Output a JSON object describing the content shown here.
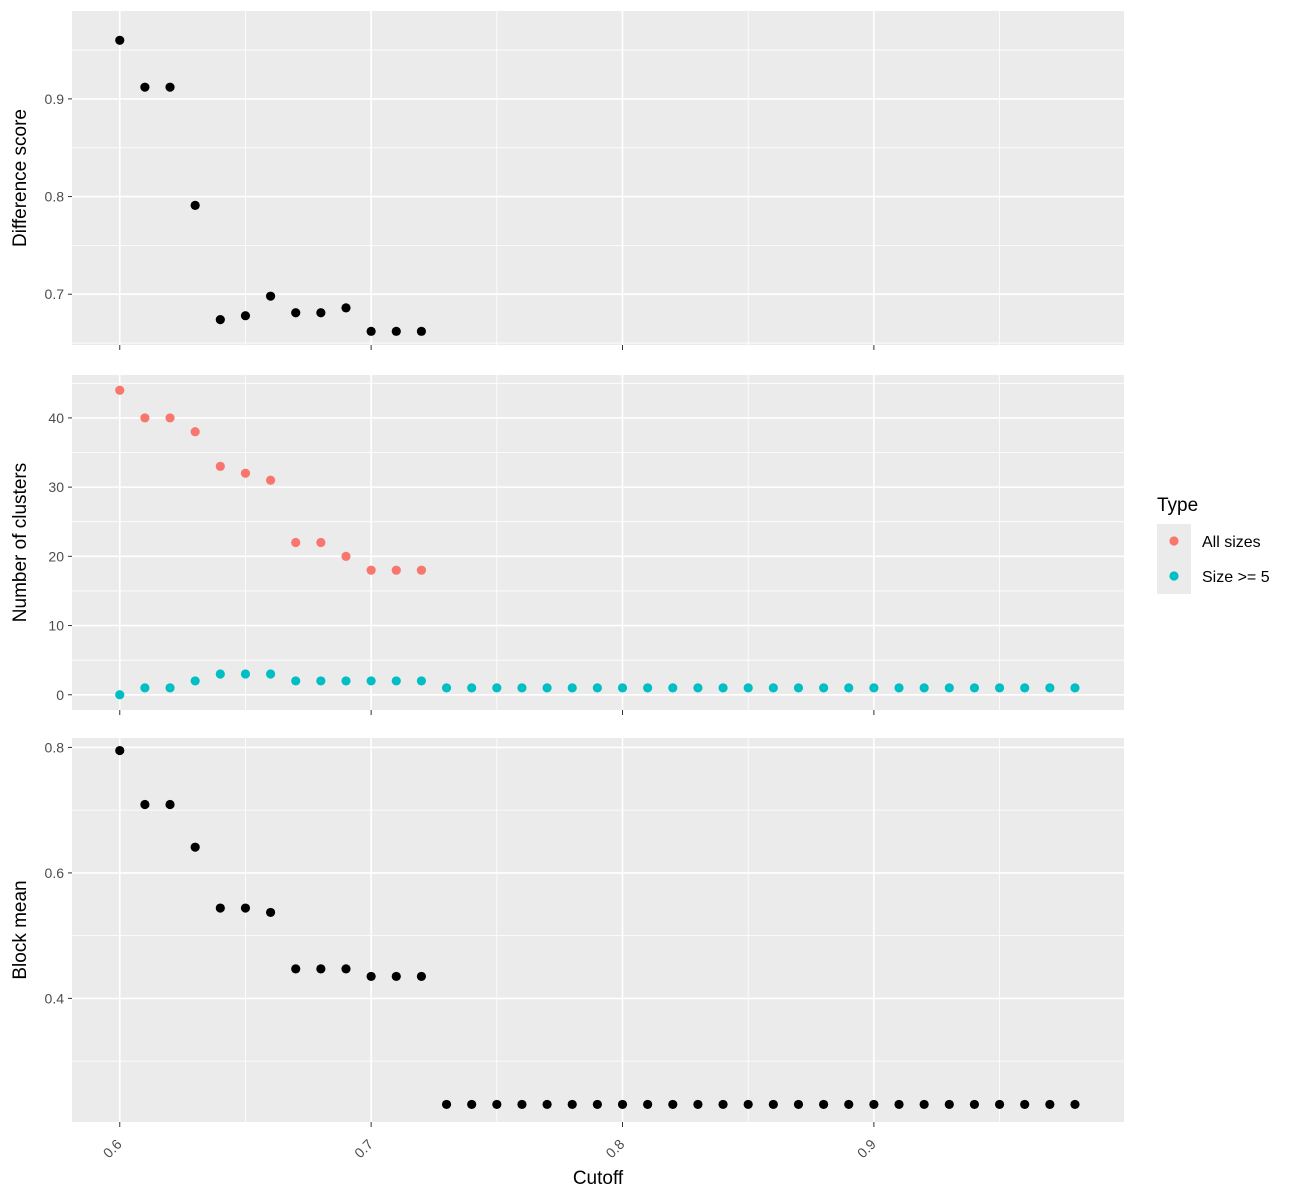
{
  "chart_data": {
    "type": "scatter",
    "xlabel": "Cutoff",
    "xlim": [
      0.581,
      0.9995
    ],
    "x_ticks": [
      0.6,
      0.7,
      0.8,
      0.9
    ],
    "x_tick_labels": [
      "0.6",
      "0.7",
      "0.8",
      "0.9"
    ],
    "legend": {
      "title": "Type",
      "placement": "right",
      "entries": [
        {
          "label": "All sizes",
          "color": "#F8766D"
        },
        {
          "label": "Size >= 5",
          "color": "#00BFC4"
        }
      ]
    },
    "panels": [
      {
        "ylabel": "Difference score",
        "ylim": [
          0.648,
          0.99
        ],
        "y_ticks": [
          0.7,
          0.8,
          0.9
        ],
        "y_tick_labels": [
          "0.7",
          "0.8",
          "0.9"
        ],
        "show_x_labels": false,
        "series": [
          {
            "color": "#000000",
            "x": [
              0.6,
              0.61,
              0.62,
              0.63,
              0.64,
              0.65,
              0.66,
              0.67,
              0.68,
              0.69,
              0.7,
              0.71,
              0.72
            ],
            "y": [
              0.96,
              0.912,
              0.912,
              0.791,
              0.674,
              0.678,
              0.698,
              0.681,
              0.681,
              0.686,
              0.662,
              0.662,
              0.662
            ]
          }
        ]
      },
      {
        "ylabel": "Number of clusters",
        "ylim": [
          -2.2,
          46.2
        ],
        "y_ticks": [
          0,
          10,
          20,
          30,
          40
        ],
        "y_tick_labels": [
          "0",
          "10",
          "20",
          "30",
          "40"
        ],
        "show_x_labels": false,
        "series": [
          {
            "name": "All sizes",
            "color": "#F8766D",
            "x": [
              0.6,
              0.61,
              0.62,
              0.63,
              0.64,
              0.65,
              0.66,
              0.67,
              0.68,
              0.69,
              0.7,
              0.71,
              0.72
            ],
            "y": [
              44,
              40,
              40,
              38,
              33,
              32,
              31,
              22,
              22,
              20,
              18,
              18,
              18
            ]
          },
          {
            "name": "Size >= 5",
            "color": "#00BFC4",
            "x": [
              0.6,
              0.61,
              0.62,
              0.63,
              0.64,
              0.65,
              0.66,
              0.67,
              0.68,
              0.69,
              0.7,
              0.71,
              0.72,
              0.73,
              0.74,
              0.75,
              0.76,
              0.77,
              0.78,
              0.79,
              0.8,
              0.81,
              0.82,
              0.83,
              0.84,
              0.85,
              0.86,
              0.87,
              0.88,
              0.89,
              0.9,
              0.91,
              0.92,
              0.93,
              0.94,
              0.95,
              0.96,
              0.97,
              0.98
            ],
            "y": [
              0,
              1,
              1,
              2,
              3,
              3,
              3,
              2,
              2,
              2,
              2,
              2,
              2,
              1,
              1,
              1,
              1,
              1,
              1,
              1,
              1,
              1,
              1,
              1,
              1,
              1,
              1,
              1,
              1,
              1,
              1,
              1,
              1,
              1,
              1,
              1,
              1,
              1,
              1
            ]
          }
        ]
      },
      {
        "ylabel": "Block mean",
        "ylim": [
          0.203,
          0.815
        ],
        "y_ticks": [
          0.4,
          0.6,
          0.8
        ],
        "y_tick_labels": [
          "0.4",
          "0.6",
          "0.8"
        ],
        "show_x_labels": true,
        "series": [
          {
            "color": "#000000",
            "x": [
              0.6,
              0.61,
              0.62,
              0.63,
              0.64,
              0.65,
              0.66,
              0.67,
              0.68,
              0.69,
              0.7,
              0.71,
              0.72,
              0.73,
              0.74,
              0.75,
              0.76,
              0.77,
              0.78,
              0.79,
              0.8,
              0.81,
              0.82,
              0.83,
              0.84,
              0.85,
              0.86,
              0.87,
              0.88,
              0.89,
              0.9,
              0.91,
              0.92,
              0.93,
              0.94,
              0.95,
              0.96,
              0.97,
              0.98
            ],
            "y": [
              0.795,
              0.709,
              0.709,
              0.641,
              0.544,
              0.544,
              0.537,
              0.447,
              0.447,
              0.447,
              0.435,
              0.435,
              0.435,
              0.231,
              0.231,
              0.231,
              0.231,
              0.231,
              0.231,
              0.231,
              0.231,
              0.231,
              0.231,
              0.231,
              0.231,
              0.231,
              0.231,
              0.231,
              0.231,
              0.231,
              0.231,
              0.231,
              0.231,
              0.231,
              0.231,
              0.231,
              0.231,
              0.231,
              0.231
            ]
          }
        ]
      }
    ]
  }
}
